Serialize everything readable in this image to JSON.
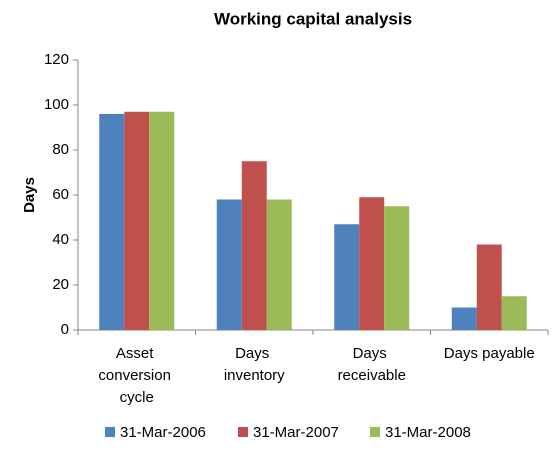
{
  "chart_data": {
    "type": "bar",
    "title": "Working capital analysis",
    "y_label": "Days",
    "categories": [
      "Asset conversion cycle",
      "Days inventory",
      "Days receivable",
      "Days payable"
    ],
    "series": [
      {
        "name": "31-Mar-2006",
        "color": "#4f81bd",
        "values": [
          96,
          58,
          47,
          10
        ]
      },
      {
        "name": "31-Mar-2007",
        "color": "#c0504d",
        "values": [
          97,
          75,
          59,
          38
        ]
      },
      {
        "name": "31-Mar-2008",
        "color": "#9bbb59",
        "values": [
          97,
          58,
          55,
          15
        ]
      }
    ],
    "ylim": [
      0,
      120
    ],
    "yticks": [
      0,
      20,
      40,
      60,
      80,
      100,
      120
    ],
    "grid": false,
    "legend": "bottom"
  }
}
